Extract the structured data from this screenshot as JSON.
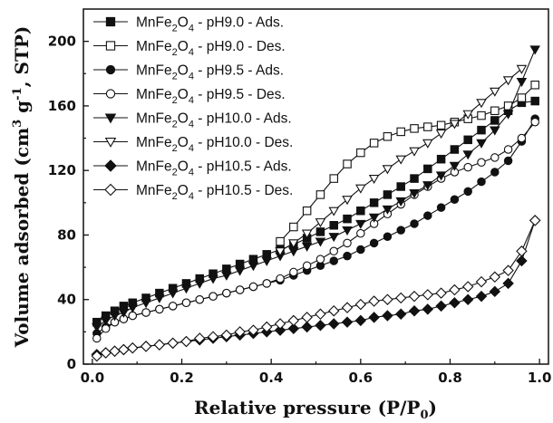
{
  "chart_data": {
    "type": "scatter",
    "title": "",
    "xlabel": "Relative pressure (P/P",
    "xlabel_sub": "0",
    "xlabel_end": ")",
    "ylabel": "Volume adsorbed (cm",
    "ylabel_sup1": "3",
    "ylabel_mid": " g",
    "ylabel_sup2": "-1",
    "ylabel_end": ", STP)",
    "xlim": [
      -0.02,
      1.02
    ],
    "ylim": [
      0,
      220
    ],
    "xticks": [
      "0.0",
      "0.2",
      "0.4",
      "0.6",
      "0.8",
      "1.0"
    ],
    "yticks": [
      "0",
      "40",
      "80",
      "120",
      "160",
      "200"
    ],
    "legend_position": "top-left",
    "series": [
      {
        "name": "MnFe2O4 - pH9.0 - Ads.",
        "name_pre": "MnFe",
        "name_sub1": "2",
        "name_mid": "O",
        "name_sub2": "4",
        "name_post": " - pH9.0 - Ads.",
        "marker": "square",
        "filled": true,
        "x": [
          0.01,
          0.03,
          0.05,
          0.07,
          0.09,
          0.12,
          0.15,
          0.18,
          0.21,
          0.24,
          0.27,
          0.3,
          0.33,
          0.36,
          0.39,
          0.42,
          0.45,
          0.48,
          0.51,
          0.54,
          0.57,
          0.6,
          0.63,
          0.66,
          0.69,
          0.72,
          0.75,
          0.78,
          0.81,
          0.84,
          0.87,
          0.9,
          0.93,
          0.96,
          0.99
        ],
        "y": [
          26,
          30,
          33,
          36,
          38,
          41,
          44,
          47,
          50,
          53,
          56,
          59,
          62,
          65,
          68,
          71,
          74,
          78,
          82,
          86,
          90,
          95,
          100,
          105,
          110,
          115,
          121,
          127,
          133,
          139,
          145,
          151,
          157,
          162,
          163
        ]
      },
      {
        "name": "MnFe2O4 - pH9.0 - Des.",
        "name_pre": "MnFe",
        "name_sub1": "2",
        "name_mid": "O",
        "name_sub2": "4",
        "name_post": " - pH9.0 - Des.",
        "marker": "square",
        "filled": false,
        "x": [
          0.42,
          0.45,
          0.48,
          0.51,
          0.54,
          0.57,
          0.6,
          0.63,
          0.66,
          0.69,
          0.72,
          0.75,
          0.78,
          0.81,
          0.84,
          0.87,
          0.9,
          0.93,
          0.96,
          0.99
        ],
        "y": [
          76,
          85,
          95,
          105,
          115,
          124,
          131,
          137,
          141,
          144,
          146,
          147,
          148,
          150,
          152,
          154,
          157,
          160,
          165,
          173
        ]
      },
      {
        "name": "MnFe2O4 - pH9.5 - Ads.",
        "name_pre": "MnFe",
        "name_sub1": "2",
        "name_mid": "O",
        "name_sub2": "4",
        "name_post": " - pH9.5 - Ads.",
        "marker": "circle",
        "filled": true,
        "x": [
          0.01,
          0.03,
          0.05,
          0.07,
          0.09,
          0.12,
          0.15,
          0.18,
          0.21,
          0.24,
          0.27,
          0.3,
          0.33,
          0.36,
          0.39,
          0.42,
          0.45,
          0.48,
          0.51,
          0.54,
          0.57,
          0.6,
          0.63,
          0.66,
          0.69,
          0.72,
          0.75,
          0.78,
          0.81,
          0.84,
          0.87,
          0.9,
          0.93,
          0.96,
          0.99
        ],
        "y": [
          19,
          23,
          26,
          28,
          30,
          32,
          34,
          36,
          38,
          40,
          42,
          44,
          46,
          48,
          50,
          52,
          55,
          58,
          61,
          64,
          67,
          71,
          75,
          79,
          83,
          87,
          92,
          97,
          102,
          107,
          113,
          119,
          126,
          138,
          152
        ]
      },
      {
        "name": "MnFe2O4 - pH9.5 - Des.",
        "name_pre": "MnFe",
        "name_sub1": "2",
        "name_mid": "O",
        "name_sub2": "4",
        "name_post": " - pH9.5 - Des.",
        "marker": "circle",
        "filled": false,
        "x": [
          0.01,
          0.03,
          0.05,
          0.07,
          0.09,
          0.12,
          0.15,
          0.18,
          0.21,
          0.24,
          0.27,
          0.3,
          0.33,
          0.36,
          0.39,
          0.42,
          0.45,
          0.48,
          0.51,
          0.54,
          0.57,
          0.6,
          0.63,
          0.66,
          0.69,
          0.72,
          0.75,
          0.78,
          0.81,
          0.84,
          0.87,
          0.9,
          0.93,
          0.96,
          0.99
        ],
        "y": [
          16,
          22,
          26,
          28,
          30,
          32,
          34,
          36,
          38,
          40,
          42,
          44,
          46,
          48,
          50,
          53,
          57,
          61,
          65,
          70,
          75,
          81,
          87,
          93,
          99,
          105,
          110,
          115,
          119,
          122,
          125,
          128,
          133,
          140,
          150
        ]
      },
      {
        "name": "MnFe2O4 - pH10.0 - Ads.",
        "name_pre": "MnFe",
        "name_sub1": "2",
        "name_mid": "O",
        "name_sub2": "4",
        "name_post": " - pH10.0 - Ads.",
        "marker": "triangle-down",
        "filled": true,
        "x": [
          0.01,
          0.03,
          0.05,
          0.07,
          0.09,
          0.12,
          0.15,
          0.18,
          0.21,
          0.24,
          0.27,
          0.3,
          0.33,
          0.36,
          0.39,
          0.42,
          0.45,
          0.48,
          0.51,
          0.54,
          0.57,
          0.6,
          0.63,
          0.66,
          0.69,
          0.72,
          0.75,
          0.78,
          0.81,
          0.84,
          0.87,
          0.9,
          0.93,
          0.96,
          0.99
        ],
        "y": [
          23,
          27,
          30,
          32,
          35,
          38,
          41,
          44,
          47,
          50,
          53,
          55,
          58,
          61,
          64,
          67,
          70,
          73,
          76,
          79,
          83,
          87,
          91,
          96,
          101,
          106,
          111,
          117,
          123,
          130,
          137,
          145,
          155,
          175,
          195
        ]
      },
      {
        "name": "MnFe2O4 - pH10.0 - Des.",
        "name_pre": "MnFe",
        "name_sub1": "2",
        "name_mid": "O",
        "name_sub2": "4",
        "name_post": " - pH10.0 - Des.",
        "marker": "triangle-down",
        "filled": false,
        "x": [
          0.42,
          0.45,
          0.48,
          0.51,
          0.54,
          0.57,
          0.6,
          0.63,
          0.66,
          0.69,
          0.72,
          0.75,
          0.78,
          0.81,
          0.84,
          0.87,
          0.9,
          0.93,
          0.96
        ],
        "y": [
          70,
          75,
          81,
          88,
          95,
          102,
          109,
          115,
          121,
          127,
          132,
          137,
          143,
          149,
          155,
          162,
          169,
          176,
          183
        ]
      },
      {
        "name": "MnFe2O4 - pH10.5 - Ads.",
        "name_pre": "MnFe",
        "name_sub1": "2",
        "name_mid": "O",
        "name_sub2": "4",
        "name_post": " - pH10.5 - Ads.",
        "marker": "diamond",
        "filled": true,
        "x": [
          0.01,
          0.03,
          0.05,
          0.07,
          0.09,
          0.12,
          0.15,
          0.18,
          0.21,
          0.24,
          0.27,
          0.3,
          0.33,
          0.36,
          0.39,
          0.42,
          0.45,
          0.48,
          0.51,
          0.54,
          0.57,
          0.6,
          0.63,
          0.66,
          0.69,
          0.72,
          0.75,
          0.78,
          0.81,
          0.84,
          0.87,
          0.9,
          0.93,
          0.96,
          0.99
        ],
        "y": [
          6,
          7,
          8,
          9,
          10,
          11,
          12,
          13,
          14,
          15,
          16,
          17,
          18,
          19,
          20,
          21,
          22,
          23,
          24,
          25,
          26,
          27,
          29,
          30,
          31,
          33,
          34,
          36,
          38,
          40,
          42,
          45,
          50,
          64,
          89
        ]
      },
      {
        "name": "MnFe2O4 - pH10.5 - Des.",
        "name_pre": "MnFe",
        "name_sub1": "2",
        "name_mid": "O",
        "name_sub2": "4",
        "name_post": " - pH10.5 - Des.",
        "marker": "diamond",
        "filled": false,
        "x": [
          0.01,
          0.03,
          0.05,
          0.07,
          0.09,
          0.12,
          0.15,
          0.18,
          0.21,
          0.24,
          0.27,
          0.3,
          0.33,
          0.36,
          0.39,
          0.42,
          0.45,
          0.48,
          0.51,
          0.54,
          0.57,
          0.6,
          0.63,
          0.66,
          0.69,
          0.72,
          0.75,
          0.78,
          0.81,
          0.84,
          0.87,
          0.9,
          0.93,
          0.96,
          0.99
        ],
        "y": [
          5,
          7,
          8,
          9,
          10,
          11,
          12,
          13,
          14,
          16,
          17,
          18,
          20,
          21,
          23,
          25,
          27,
          29,
          31,
          33,
          35,
          37,
          39,
          40,
          41,
          42,
          43,
          44,
          46,
          48,
          51,
          54,
          58,
          70,
          89
        ]
      }
    ]
  }
}
